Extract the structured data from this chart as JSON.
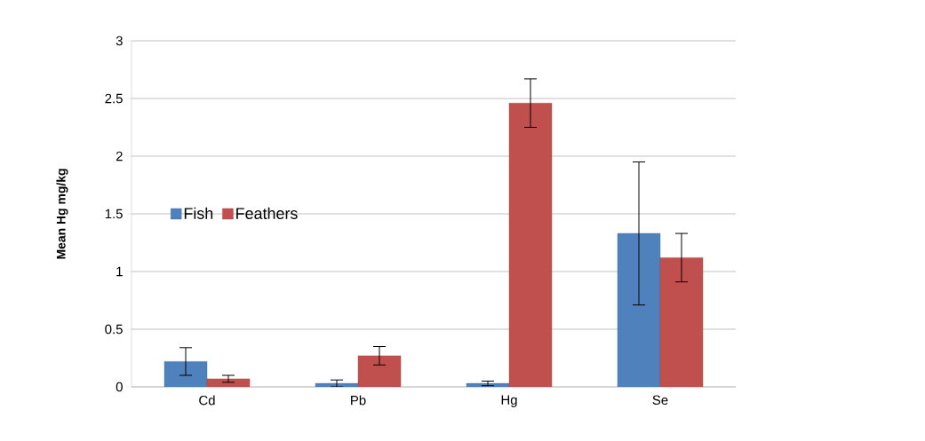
{
  "chart_data": {
    "type": "bar",
    "ylabel": "Mean Hg mg/kg",
    "categories": [
      "Cd",
      "Pb",
      "Hg",
      "Se"
    ],
    "series": [
      {
        "name": "Fish",
        "color": "#4f81bd",
        "values": [
          0.22,
          0.03,
          0.03,
          1.33
        ],
        "errors": [
          0.12,
          0.03,
          0.02,
          0.62
        ]
      },
      {
        "name": "Feathers",
        "color": "#c0504d",
        "values": [
          0.07,
          0.27,
          2.46,
          1.12
        ],
        "errors": [
          0.03,
          0.08,
          0.21,
          0.21
        ]
      }
    ],
    "ylim": [
      0,
      3
    ],
    "yticks": [
      0,
      0.5,
      1,
      1.5,
      2,
      2.5,
      3
    ],
    "grid": "y",
    "legend": "left"
  }
}
